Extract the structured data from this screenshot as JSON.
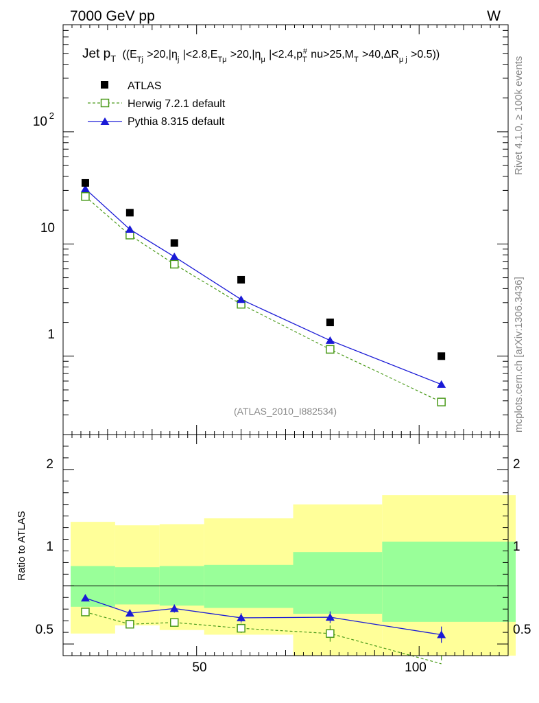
{
  "header": {
    "energy": "7000 GeV pp",
    "process": "W"
  },
  "side_labels": {
    "rivet": "Rivet 4.1.0, ≥ 100k events",
    "mcplots": "mcplots.cern.ch [arXiv:1306.3436]"
  },
  "chart_data": {
    "type": "line",
    "title": "Jet pT ((ETj>20,|ηj|<2.8,ETμ>20,|ημ|<2.4,pT#nu>25,MT>40,ΔRμ j>0.5))",
    "analysis_id": "(ATLAS_2010_I882534)",
    "x": [
      25,
      35,
      45,
      60,
      80,
      105
    ],
    "x_bins": [
      [
        20,
        30
      ],
      [
        30,
        40
      ],
      [
        40,
        50
      ],
      [
        50,
        70
      ],
      [
        70,
        90
      ],
      [
        90,
        120
      ]
    ],
    "xlim": [
      20,
      120
    ],
    "x_ticks": [
      "50",
      "100"
    ],
    "main": {
      "yscale": "log",
      "ylim": [
        0.2,
        900
      ],
      "y_ticks": [
        "1",
        "10"
      ],
      "y_tick_exp": "10",
      "y_tick_exp_power": "2",
      "series": [
        {
          "name": "ATLAS",
          "values": [
            35,
            19,
            10.2,
            4.8,
            2.0,
            1.0
          ],
          "color": "#000000"
        },
        {
          "name": "Herwig 7.2.1 default",
          "values": [
            26.5,
            12,
            6.6,
            2.9,
            1.15,
            0.39
          ],
          "color": "#4a9a1a"
        },
        {
          "name": "Pythia 8.315 default",
          "values": [
            31,
            13.5,
            7.7,
            3.2,
            1.38,
            0.56
          ],
          "color": "#1a1ad6"
        }
      ]
    },
    "ratio": {
      "ylabel": "Ratio to ATLAS",
      "ylim": [
        0.4,
        2.3
      ],
      "y_ticks": [
        "0.5",
        "1",
        "2"
      ],
      "green_band": [
        [
          0.82,
          1.17
        ],
        [
          0.84,
          1.16
        ],
        [
          0.83,
          1.17
        ],
        [
          0.81,
          1.18
        ],
        [
          0.76,
          1.29
        ],
        [
          0.69,
          1.38
        ]
      ],
      "yellow_band": [
        [
          0.59,
          1.55
        ],
        [
          0.66,
          1.52
        ],
        [
          0.62,
          1.53
        ],
        [
          0.58,
          1.58
        ],
        [
          0.36,
          1.7
        ],
        [
          0.35,
          1.78
        ]
      ],
      "series": [
        {
          "name": "Herwig 7.2.1 default",
          "values": [
            0.775,
            0.67,
            0.685,
            0.635,
            0.59,
            0.33
          ],
          "errors": [
            0.02,
            0.025,
            0.035,
            0.04,
            0.07,
            0.03
          ]
        },
        {
          "name": "Pythia 8.315 default",
          "values": [
            0.895,
            0.765,
            0.805,
            0.725,
            0.73,
            0.58
          ],
          "errors": [
            0.015,
            0.025,
            0.035,
            0.04,
            0.05,
            0.07
          ]
        }
      ]
    },
    "legend": {
      "position": "top-left"
    }
  }
}
